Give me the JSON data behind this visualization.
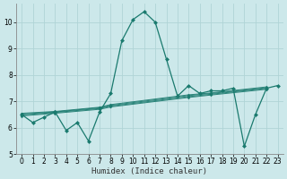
{
  "xlabel": "Humidex (Indice chaleur)",
  "ylabel": "",
  "bg_color": "#cce8ea",
  "grid_color": "#b0d4d6",
  "line_color": "#1a7a6e",
  "markersize": 2.5,
  "linewidth": 0.9,
  "x": [
    0,
    1,
    2,
    3,
    4,
    5,
    6,
    7,
    8,
    9,
    10,
    11,
    12,
    13,
    14,
    15,
    16,
    17,
    18,
    19,
    20,
    21,
    22,
    23
  ],
  "main_y": [
    6.5,
    6.2,
    6.4,
    6.6,
    5.9,
    6.2,
    5.5,
    6.6,
    7.3,
    9.3,
    10.1,
    10.4,
    10.0,
    8.6,
    7.2,
    7.6,
    7.3,
    7.4,
    7.4,
    7.5,
    5.3,
    6.5,
    7.5,
    7.6
  ],
  "trend_lines": [
    {
      "x": [
        0,
        3,
        7,
        8,
        15,
        17,
        22
      ],
      "y": [
        6.55,
        6.62,
        6.78,
        6.88,
        7.25,
        7.32,
        7.55
      ]
    },
    {
      "x": [
        0,
        3,
        7,
        8,
        15,
        17,
        22
      ],
      "y": [
        6.52,
        6.6,
        6.76,
        6.85,
        7.22,
        7.3,
        7.52
      ]
    },
    {
      "x": [
        0,
        3,
        7,
        8,
        15,
        17,
        22
      ],
      "y": [
        6.48,
        6.58,
        6.73,
        6.82,
        7.18,
        7.27,
        7.49
      ]
    },
    {
      "x": [
        0,
        3,
        7,
        8,
        15,
        17,
        22
      ],
      "y": [
        6.45,
        6.55,
        6.7,
        6.79,
        7.15,
        7.24,
        7.46
      ]
    }
  ],
  "xlim": [
    -0.5,
    23.5
  ],
  "ylim": [
    5.0,
    10.7
  ],
  "yticks": [
    5,
    6,
    7,
    8,
    9,
    10
  ],
  "xticks": [
    0,
    1,
    2,
    3,
    4,
    5,
    6,
    7,
    8,
    9,
    10,
    11,
    12,
    13,
    14,
    15,
    16,
    17,
    18,
    19,
    20,
    21,
    22,
    23
  ],
  "tick_fontsize": 5.5,
  "label_fontsize": 6.5
}
